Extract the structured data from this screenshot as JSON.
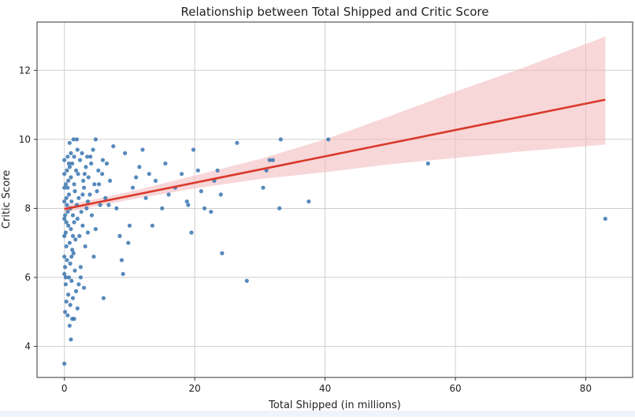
{
  "chart_data": {
    "type": "scatter",
    "title": "Relationship between Total Shipped and Critic Score",
    "xlabel": "Total Shipped (in millions)",
    "ylabel": "Critic Score",
    "xlim": [
      -4.2,
      87.2
    ],
    "ylim": [
      3.1,
      13.4
    ],
    "xticks": [
      0,
      20,
      40,
      60,
      80
    ],
    "yticks": [
      4,
      6,
      8,
      10,
      12
    ],
    "grid": true,
    "legend": "none",
    "colors": {
      "points": "#3a75b0",
      "regression_line": "#d93a2b",
      "confidence_band": "#f4bcbf",
      "grid": "#cfcfcf"
    },
    "series": [
      {
        "points": [
          [
            0.0,
            3.5
          ],
          [
            0.5,
            4.9
          ],
          [
            0.8,
            4.6
          ],
          [
            1.0,
            4.2
          ],
          [
            1.2,
            4.8
          ],
          [
            1.5,
            4.8
          ],
          [
            0.3,
            5.3
          ],
          [
            0.6,
            5.5
          ],
          [
            0.9,
            5.2
          ],
          [
            1.3,
            5.4
          ],
          [
            1.8,
            5.6
          ],
          [
            2.0,
            5.1
          ],
          [
            0.2,
            5.8
          ],
          [
            0.7,
            6.0
          ],
          [
            1.1,
            5.9
          ],
          [
            1.6,
            6.2
          ],
          [
            2.2,
            5.8
          ],
          [
            0.1,
            6.3
          ],
          [
            0.4,
            6.5
          ],
          [
            0.9,
            6.4
          ],
          [
            1.4,
            6.7
          ],
          [
            2.5,
            6.3
          ],
          [
            3.0,
            5.7
          ],
          [
            6.0,
            5.4
          ],
          [
            0.3,
            6.9
          ],
          [
            0.8,
            7.0
          ],
          [
            1.2,
            6.8
          ],
          [
            1.7,
            7.1
          ],
          [
            2.3,
            7.2
          ],
          [
            3.2,
            6.9
          ],
          [
            4.5,
            6.6
          ],
          [
            0.2,
            7.3
          ],
          [
            0.6,
            7.5
          ],
          [
            1.0,
            7.4
          ],
          [
            1.5,
            7.6
          ],
          [
            2.0,
            7.7
          ],
          [
            2.8,
            7.5
          ],
          [
            3.6,
            7.3
          ],
          [
            4.8,
            7.4
          ],
          [
            0.1,
            7.8
          ],
          [
            0.5,
            7.9
          ],
          [
            0.9,
            8.0
          ],
          [
            1.3,
            7.8
          ],
          [
            1.9,
            8.1
          ],
          [
            2.6,
            7.9
          ],
          [
            3.4,
            8.0
          ],
          [
            4.2,
            7.8
          ],
          [
            5.5,
            8.1
          ],
          [
            0.3,
            8.3
          ],
          [
            0.7,
            8.4
          ],
          [
            1.1,
            8.2
          ],
          [
            1.6,
            8.5
          ],
          [
            2.2,
            8.3
          ],
          [
            3.0,
            8.6
          ],
          [
            3.9,
            8.4
          ],
          [
            5.0,
            8.5
          ],
          [
            6.3,
            8.3
          ],
          [
            0.2,
            8.7
          ],
          [
            0.6,
            8.8
          ],
          [
            1.0,
            8.9
          ],
          [
            1.5,
            8.7
          ],
          [
            2.1,
            9.0
          ],
          [
            2.9,
            8.8
          ],
          [
            3.7,
            8.9
          ],
          [
            4.6,
            8.7
          ],
          [
            5.8,
            9.0
          ],
          [
            7.0,
            8.8
          ],
          [
            0.4,
            9.1
          ],
          [
            0.8,
            9.2
          ],
          [
            1.2,
            9.3
          ],
          [
            1.8,
            9.1
          ],
          [
            2.4,
            9.4
          ],
          [
            3.3,
            9.2
          ],
          [
            4.1,
            9.3
          ],
          [
            5.2,
            9.1
          ],
          [
            6.5,
            9.3
          ],
          [
            0.5,
            9.5
          ],
          [
            1.0,
            9.6
          ],
          [
            1.5,
            9.5
          ],
          [
            2.0,
            9.7
          ],
          [
            2.7,
            9.6
          ],
          [
            3.5,
            9.5
          ],
          [
            4.4,
            9.7
          ],
          [
            0.8,
            9.9
          ],
          [
            1.4,
            10.0
          ],
          [
            1.9,
            10.0
          ],
          [
            4.8,
            10.0
          ],
          [
            0.0,
            6.1
          ],
          [
            0.0,
            6.6
          ],
          [
            0.0,
            7.2
          ],
          [
            0.0,
            7.7
          ],
          [
            0.0,
            8.2
          ],
          [
            0.0,
            8.6
          ],
          [
            0.0,
            9.0
          ],
          [
            0.0,
            9.4
          ],
          [
            0.1,
            5.0
          ],
          [
            0.2,
            6.0
          ],
          [
            0.3,
            7.6
          ],
          [
            0.4,
            8.1
          ],
          [
            0.5,
            8.6
          ],
          [
            0.7,
            9.3
          ],
          [
            1.1,
            6.6
          ],
          [
            1.3,
            7.2
          ],
          [
            2.5,
            6.0
          ],
          [
            2.8,
            8.4
          ],
          [
            3.1,
            9.0
          ],
          [
            3.6,
            8.2
          ],
          [
            4.0,
            9.5
          ],
          [
            5.3,
            8.7
          ],
          [
            5.9,
            9.4
          ],
          [
            6.8,
            8.1
          ],
          [
            7.5,
            9.8
          ],
          [
            8.0,
            8.0
          ],
          [
            8.5,
            7.2
          ],
          [
            8.8,
            6.5
          ],
          [
            9.0,
            6.1
          ],
          [
            9.3,
            9.6
          ],
          [
            9.8,
            7.0
          ],
          [
            10.0,
            7.5
          ],
          [
            10.5,
            8.6
          ],
          [
            11.0,
            8.9
          ],
          [
            11.5,
            9.2
          ],
          [
            12.0,
            9.7
          ],
          [
            12.5,
            8.3
          ],
          [
            13.0,
            9.0
          ],
          [
            13.5,
            7.5
          ],
          [
            14.0,
            8.8
          ],
          [
            15.0,
            8.0
          ],
          [
            15.5,
            9.3
          ],
          [
            16.0,
            8.4
          ],
          [
            17.0,
            8.6
          ],
          [
            18.0,
            9.0
          ],
          [
            18.8,
            8.2
          ],
          [
            19.0,
            8.1
          ],
          [
            19.5,
            7.3
          ],
          [
            19.8,
            9.7
          ],
          [
            20.5,
            9.1
          ],
          [
            21.0,
            8.5
          ],
          [
            21.5,
            8.0
          ],
          [
            22.5,
            7.9
          ],
          [
            23.0,
            8.8
          ],
          [
            23.5,
            9.1
          ],
          [
            24.0,
            8.4
          ],
          [
            24.2,
            6.7
          ],
          [
            26.5,
            9.9
          ],
          [
            28.0,
            5.9
          ],
          [
            30.5,
            8.6
          ],
          [
            31.0,
            9.1
          ],
          [
            31.5,
            9.4
          ],
          [
            32.0,
            9.4
          ],
          [
            33.0,
            8.0
          ],
          [
            33.2,
            10.0
          ],
          [
            37.5,
            8.2
          ],
          [
            40.5,
            10.0
          ],
          [
            55.8,
            9.3
          ],
          [
            83.0,
            7.7
          ]
        ]
      }
    ],
    "regression": {
      "x_start": 0.0,
      "y_start": 7.98,
      "x_end": 83.0,
      "y_end": 11.15
    },
    "confidence_band": {
      "x": [
        0,
        10,
        20,
        30,
        40,
        50,
        60,
        70,
        83
      ],
      "lower": [
        7.88,
        8.25,
        8.58,
        8.85,
        9.05,
        9.28,
        9.46,
        9.65,
        9.85
      ],
      "upper": [
        8.08,
        8.48,
        8.95,
        9.43,
        10.0,
        10.68,
        11.38,
        12.05,
        12.98
      ]
    }
  }
}
